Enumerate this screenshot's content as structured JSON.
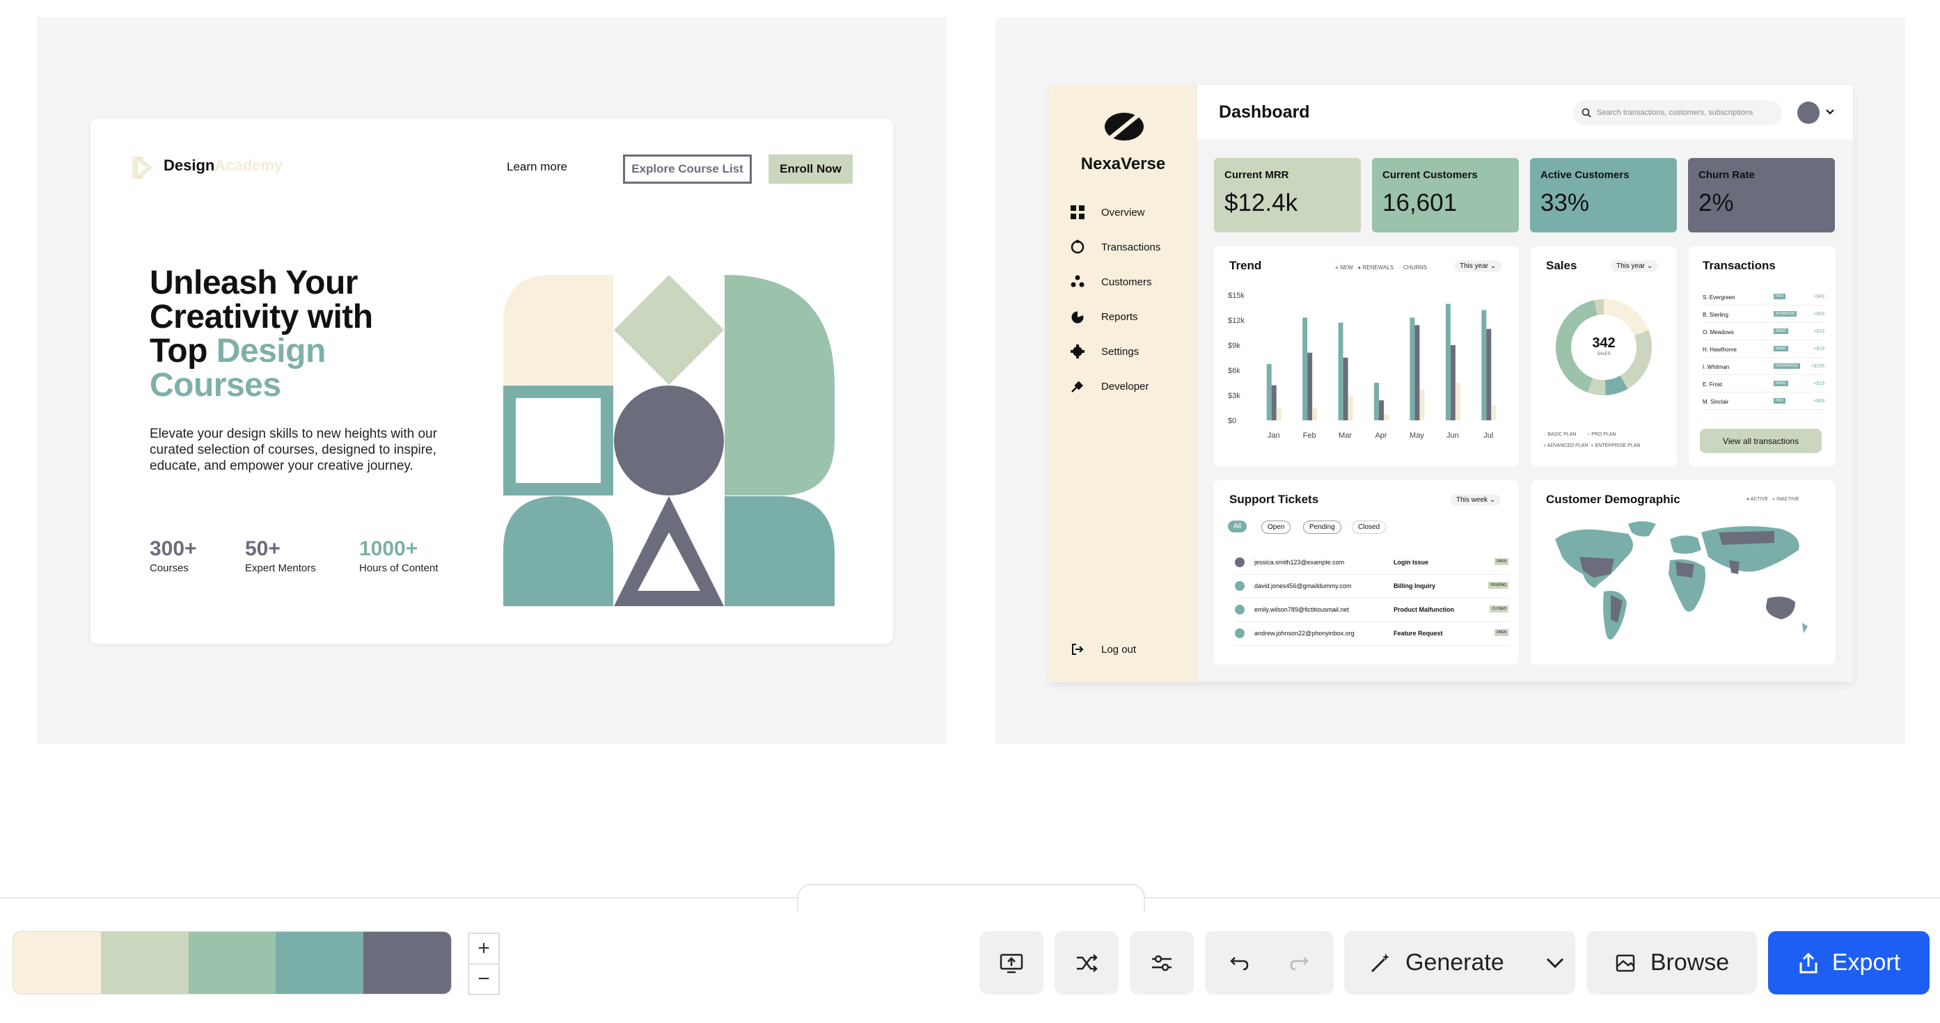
{
  "landing": {
    "brand_main": "Design",
    "brand_accent": "Academy",
    "nav_learn": "Learn more",
    "nav_explore": "Explore Course List",
    "nav_enroll": "Enroll Now",
    "title_line1": "Unleash Your",
    "title_line2": "Creativity with",
    "title_line3a": "Top",
    "title_line3b": "Design",
    "title_line4": "Courses",
    "description": "Elevate your design skills to new heights with our curated selection of courses, designed to inspire, educate, and empower your creative journey.",
    "stats": [
      {
        "value": "300+",
        "label": "Courses"
      },
      {
        "value": "50+",
        "label": "Expert Mentors"
      },
      {
        "value": "1000+",
        "label": "Hours of Content"
      }
    ]
  },
  "dashboard": {
    "brand": "NexaVerse",
    "title": "Dashboard",
    "search_placeholder": "Search transactions, customers, subscriptions",
    "nav": [
      "Overview",
      "Transactions",
      "Customers",
      "Reports",
      "Settings",
      "Developer"
    ],
    "logout": "Log out",
    "kpis": [
      {
        "title": "Current MRR",
        "value": "$12.4k"
      },
      {
        "title": "Current Customers",
        "value": "16,601"
      },
      {
        "title": "Active Customers",
        "value": "33%"
      },
      {
        "title": "Churn Rate",
        "value": "2%"
      }
    ],
    "trend": {
      "title": "Trend",
      "legend": [
        "NEW",
        "RENEWALS",
        "CHURNS"
      ],
      "range": "This year",
      "y_ticks": [
        "$15k",
        "$12k",
        "$9k",
        "$6k",
        "$3k",
        "$0"
      ],
      "x_ticks": [
        "Jan",
        "Feb",
        "Mar",
        "Apr",
        "May",
        "Jun",
        "Jul"
      ]
    },
    "sales": {
      "title": "Sales",
      "range": "This year",
      "center_value": "342",
      "center_label": "SALES",
      "legend": [
        "BASIC PLAN",
        "PRO PLAN",
        "ADVANCED PLAN",
        "ENTERPRISE PLAN"
      ]
    },
    "transactions": {
      "title": "Transactions",
      "rows": [
        {
          "name": "S. Evergreen",
          "plan": "PRO",
          "amount": "+$49"
        },
        {
          "name": "B. Sterling",
          "plan": "ADVANCED",
          "amount": "+$99"
        },
        {
          "name": "O. Meadows",
          "plan": "BASIC",
          "amount": "+$19"
        },
        {
          "name": "H. Hawthorne",
          "plan": "BASIC",
          "amount": "+$19"
        },
        {
          "name": "I. Whitman",
          "plan": "ENTERPRISE",
          "amount": "+$299"
        },
        {
          "name": "E. Frost",
          "plan": "BASIC",
          "amount": "+$19"
        },
        {
          "name": "M. Sinclair",
          "plan": "PRO",
          "amount": "+$49"
        }
      ],
      "button": "View all transactions"
    },
    "tickets": {
      "title": "Support Tickets",
      "range": "This week",
      "filters": [
        "All",
        "Open",
        "Pending",
        "Closed"
      ],
      "rows": [
        {
          "email": "jessica.smith123@example.com",
          "issue": "Login Issue",
          "status": "OPEN"
        },
        {
          "email": "david.jones456@gmaildummy.com",
          "issue": "Billing Inquiry",
          "status": "PENDING"
        },
        {
          "email": "emily.wilson789@fictitiousmail.net",
          "issue": "Product Malfunction",
          "status": "CLOSED"
        },
        {
          "email": "andrew.johnson22@phonyinbox.org",
          "issue": "Feature Request",
          "status": "OPEN"
        }
      ]
    },
    "demographic": {
      "title": "Customer Demographic",
      "legend": [
        "ACTIVE",
        "INACTIVE"
      ]
    }
  },
  "toolbar": {
    "palette": [
      "#f8f0dc",
      "#cbd6bf",
      "#9bc2ab",
      "#7aafa9",
      "#6b6d7c"
    ],
    "zoom_in": "+",
    "zoom_out": "−",
    "generate": "Generate",
    "browse": "Browse",
    "export": "Export"
  }
}
